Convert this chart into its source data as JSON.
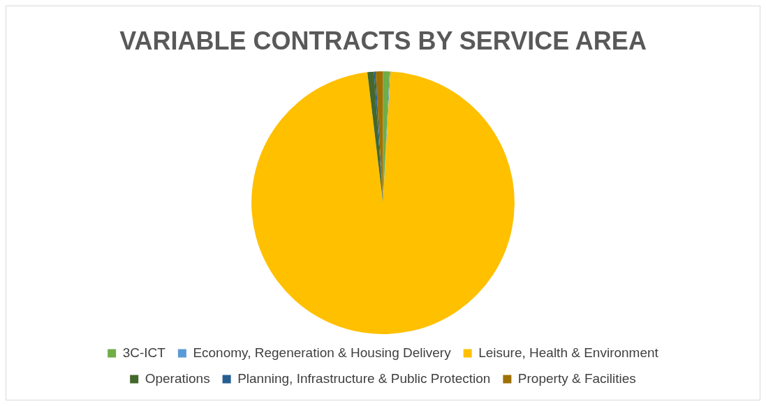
{
  "chart_data": {
    "type": "pie",
    "title": "VARIABLE CONTRACTS BY SERVICE AREA",
    "categories": [
      "3C-ICT",
      "Economy, Regeneration & Housing Delivery",
      "Leisure, Health & Environment",
      "Operations",
      "Planning, Infrastructure & Public Protection",
      "Property & Facilities"
    ],
    "values": [
      0.8,
      0.1,
      97.2,
      0.8,
      0.2,
      0.9
    ],
    "colors": [
      "#70ad47",
      "#5b9bd5",
      "#ffc000",
      "#43682b",
      "#255e91",
      "#9e7100"
    ],
    "legend": "bottom"
  }
}
